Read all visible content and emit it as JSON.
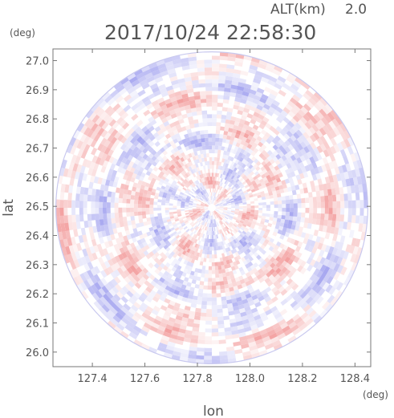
{
  "chart_data": {
    "type": "heatmap",
    "header": {
      "altitude_label": "ALT(km)",
      "altitude_value": "2.0",
      "timestamp": "2017/10/24 22:58:30"
    },
    "x_axis": {
      "label": "lon",
      "unit": "(deg)",
      "range": [
        127.25,
        128.46
      ],
      "ticks": [
        127.4,
        127.6,
        127.8,
        128.0,
        128.2,
        128.4
      ],
      "tick_labels": [
        "127.4",
        "127.6",
        "127.8",
        "128.0",
        "128.2",
        "128.4"
      ]
    },
    "y_axis": {
      "label": "lat",
      "unit": "(deg)",
      "range": [
        25.95,
        27.04
      ],
      "ticks": [
        26.0,
        26.1,
        26.2,
        26.3,
        26.4,
        26.5,
        26.6,
        26.7,
        26.8,
        26.9,
        27.0
      ],
      "tick_labels": [
        "26.0",
        "26.1",
        "26.2",
        "26.3",
        "26.4",
        "26.5",
        "26.6",
        "26.7",
        "26.8",
        "26.9",
        "27.0"
      ]
    },
    "radar_center": {
      "lon": 127.855,
      "lat": 26.495
    },
    "radar_radius_deg_lat": 0.535,
    "positive_color": "#f3a0a0",
    "negative_color": "#a8a8f0",
    "neutral_color": "#ffffff",
    "grid": false
  }
}
